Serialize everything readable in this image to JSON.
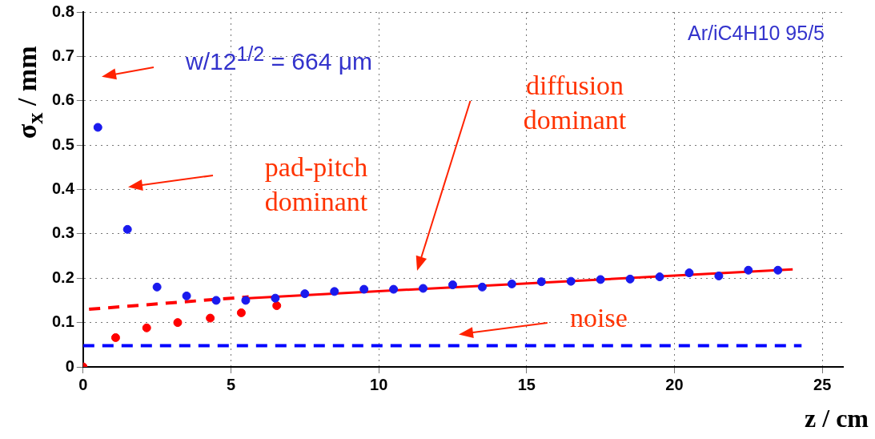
{
  "chart_data": {
    "type": "scatter",
    "ylabel": "σ$_{x}$ / mm",
    "xlabel": "z / cm",
    "annotations": [
      "w/12$^{1/2}$ = 664 μm",
      "pad-pitch dominant",
      "diffusion dominant",
      "noise",
      "Ar/iC4H10 95/5"
    ],
    "xlim": [
      0,
      25.7
    ],
    "xticks": [
      0,
      5,
      10,
      15,
      20,
      25
    ],
    "ylim": [
      0,
      0.8
    ],
    "yticks": [
      0,
      0.1,
      0.2,
      0.3,
      0.4,
      0.5,
      0.6,
      0.7,
      0.8
    ],
    "grid": true,
    "legend": false,
    "series": [
      {
        "color": "#1a1aee",
        "marker": "circle",
        "x": [
          0.5,
          1.5,
          2.5,
          3.5,
          4.5,
          5.5,
          6.5,
          7.5,
          8.5,
          9.5,
          10.5,
          11.5,
          12.5,
          13.5,
          14.5,
          15.5,
          16.5,
          17.5,
          18.5,
          19.5,
          20.5,
          21.5,
          22.5,
          23.5
        ],
        "values": [
          0.54,
          0.31,
          0.18,
          0.16,
          0.15,
          0.15,
          0.155,
          0.165,
          0.17,
          0.175,
          0.175,
          0.177,
          0.185,
          0.18,
          0.187,
          0.192,
          0.193,
          0.197,
          0.198,
          0.203,
          0.212,
          0.205,
          0.218,
          0.218
        ]
      },
      {
        "color": "#ff0000",
        "marker": "circle",
        "x": [
          0,
          1.1,
          2.15,
          3.2,
          4.3,
          5.35,
          6.55
        ],
        "values": [
          0,
          0.066,
          0.088,
          0.1,
          0.11,
          0.122,
          0.138
        ]
      },
      {
        "type": "line",
        "color": "#ff0000",
        "line_style": "solid",
        "marker": "none",
        "x": [
          5.6,
          24
        ],
        "values": [
          0.155,
          0.22
        ]
      },
      {
        "type": "line",
        "color": "#ff0000",
        "line_style": "dashed",
        "marker": "none",
        "x": [
          0.2,
          5.6
        ],
        "values": [
          0.13,
          0.158
        ]
      },
      {
        "type": "line",
        "color": "#0000ff",
        "line_style": "dashed",
        "marker": "none",
        "x": [
          0,
          24.3
        ],
        "values": [
          0.048,
          0.048
        ]
      }
    ]
  }
}
